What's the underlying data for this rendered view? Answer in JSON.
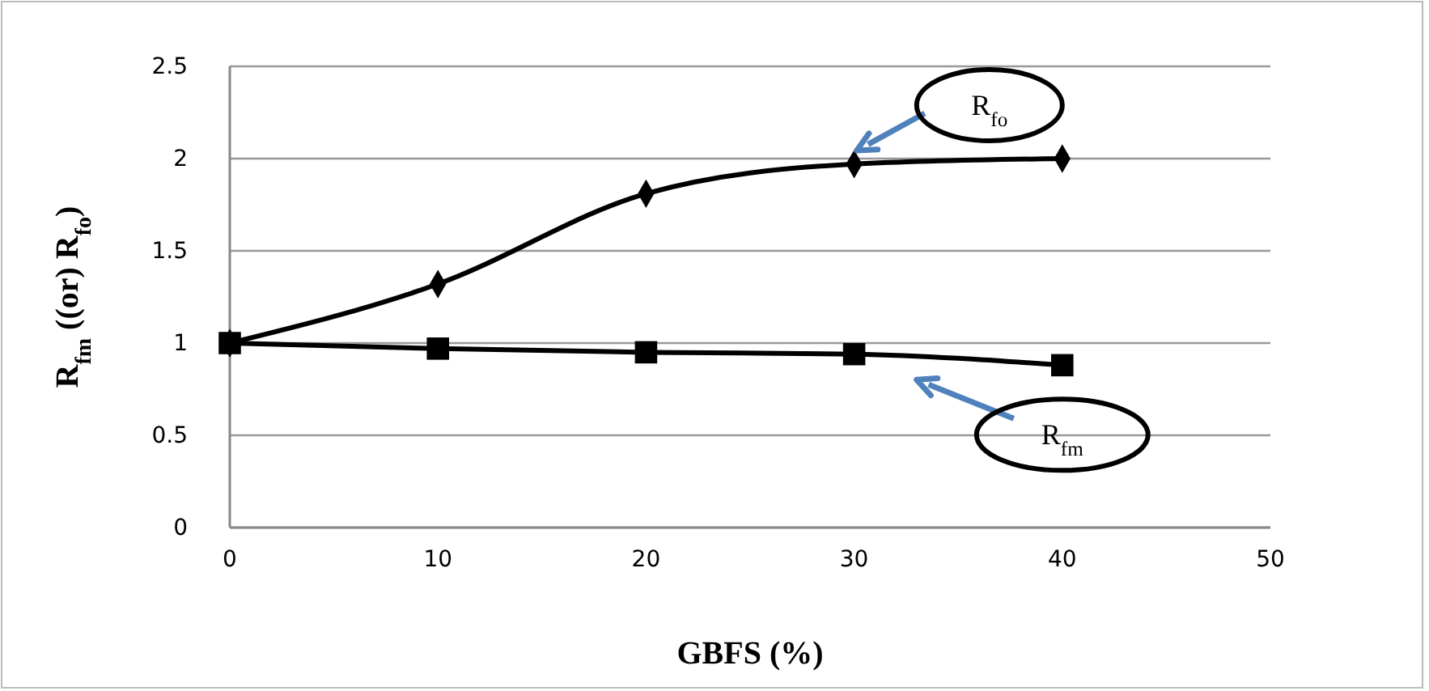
{
  "chart_data": {
    "type": "line",
    "xlabel": "GBFS (%)",
    "ylabel": "R$_{fm}$ ((or) R$_{fo}$)",
    "x": [
      0,
      10,
      20,
      30,
      40
    ],
    "series": [
      {
        "name": "R$_{fo}$",
        "color": "#000000",
        "marker": "diamond",
        "values": [
          1,
          1.32,
          1.81,
          1.97,
          2.0
        ]
      },
      {
        "name": "R$_{fm}$",
        "color": "#000000",
        "marker": "square",
        "values": [
          1,
          0.97,
          0.95,
          0.94,
          0.88
        ]
      }
    ],
    "xlim": [
      0,
      50
    ],
    "xticks": [
      0,
      10,
      20,
      30,
      40,
      50
    ],
    "ylim": [
      0,
      2.5
    ],
    "yticks": [
      0,
      0.5,
      1,
      1.5,
      2,
      2.5
    ],
    "grid": "y",
    "line_style": "solid"
  }
}
